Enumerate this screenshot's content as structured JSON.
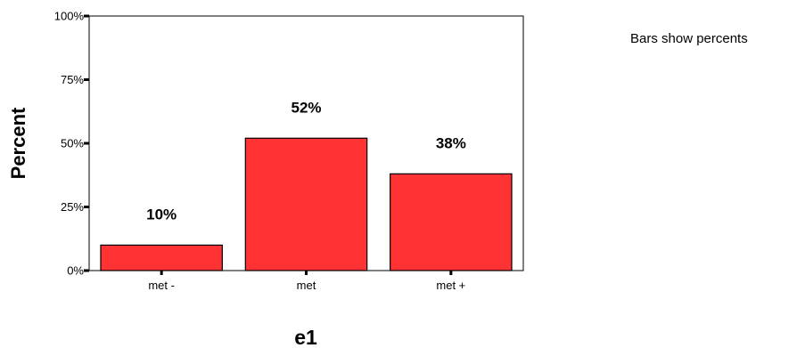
{
  "chart_data": {
    "type": "bar",
    "categories": [
      "met -",
      "met",
      "met +"
    ],
    "values": [
      10,
      52,
      38
    ],
    "data_labels": [
      "10%",
      "52%",
      "38%"
    ],
    "xlabel": "e1",
    "ylabel": "Percent",
    "ylim": [
      0,
      100
    ],
    "yticks": [
      0,
      25,
      50,
      75,
      100
    ],
    "ytick_labels": [
      "0%",
      "25%",
      "50%",
      "75%",
      "100%"
    ],
    "grid": false,
    "legend": "none",
    "note": "Bars show percents",
    "colors": {
      "bar_fill": "#ff3333",
      "bar_stroke": "#000000"
    }
  }
}
